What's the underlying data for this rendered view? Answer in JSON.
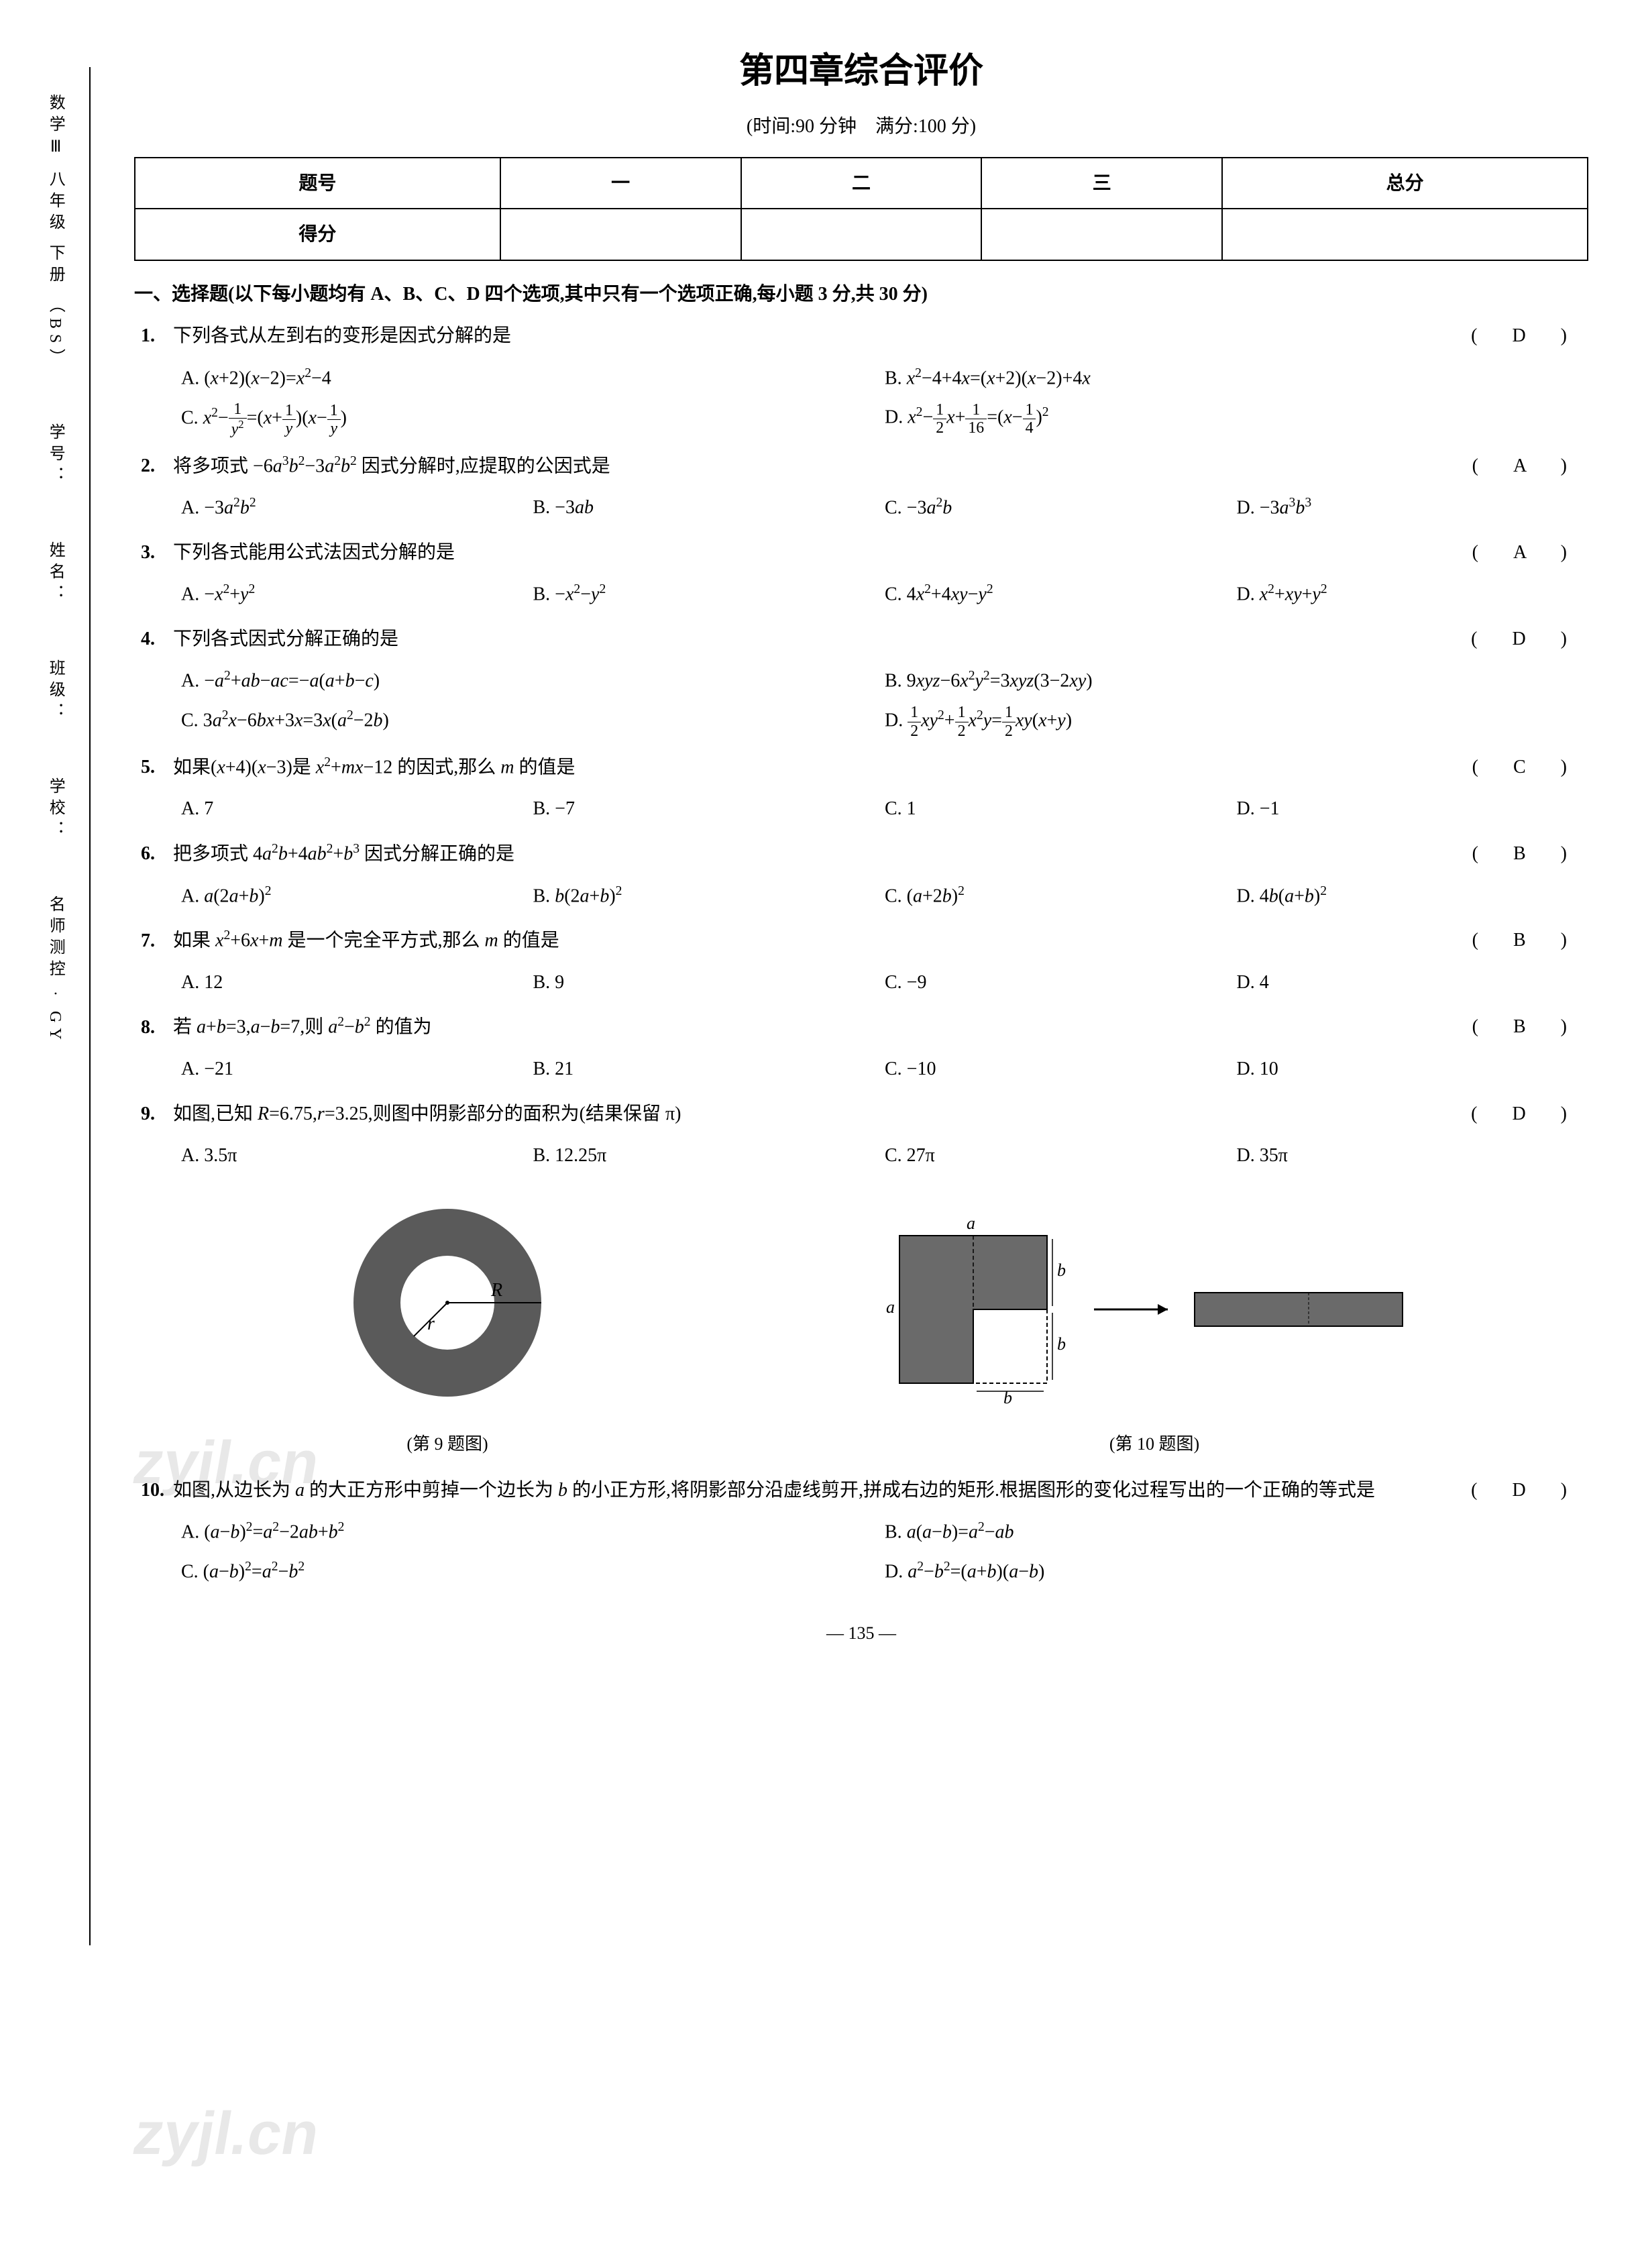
{
  "side_labels": [
    "数学Ⅲ 八年级 下册 （BS）",
    "学号：",
    "姓名：",
    "班级：",
    "学校：",
    "名师测控 · GY"
  ],
  "title": "第四章综合评价",
  "subtitle": "(时间:90 分钟　满分:100 分)",
  "score_table": {
    "headers": [
      "题号",
      "一",
      "二",
      "三",
      "总分"
    ],
    "row_label": "得分"
  },
  "section1_header": "一、选择题(以下每小题均有 A、B、C、D 四个选项,其中只有一个选项正确,每小题 3 分,共 30 分)",
  "questions": [
    {
      "num": "1.",
      "stem": "下列各式从左到右的变形是因式分解的是",
      "answer": "D",
      "layout": "opt-2",
      "options": [
        "A. (<i>x</i>+2)(<i>x</i>−2)=<i>x</i><sup>2</sup>−4",
        "B. <i>x</i><sup>2</sup>−4+4<i>x</i>=(<i>x</i>+2)(<i>x</i>−2)+4<i>x</i>",
        "C. <i>x</i><sup>2</sup>−<span class='frac'><span class='num'>1</span><span class='den'><i>y</i><sup>2</sup></span></span>=(<i>x</i>+<span class='frac'><span class='num'>1</span><span class='den'><i>y</i></span></span>)(<i>x</i>−<span class='frac'><span class='num'>1</span><span class='den'><i>y</i></span></span>)",
        "D. <i>x</i><sup>2</sup>−<span class='frac'><span class='num'>1</span><span class='den'>2</span></span><i>x</i>+<span class='frac'><span class='num'>1</span><span class='den'>16</span></span>=(<i>x</i>−<span class='frac'><span class='num'>1</span><span class='den'>4</span></span>)<sup>2</sup>"
      ]
    },
    {
      "num": "2.",
      "stem": "将多项式 −6<i>a</i><sup>3</sup><i>b</i><sup>2</sup>−3<i>a</i><sup>2</sup><i>b</i><sup>2</sup> 因式分解时,应提取的公因式是",
      "answer": "A",
      "layout": "opt-4",
      "options": [
        "A. −3<i>a</i><sup>2</sup><i>b</i><sup>2</sup>",
        "B. −3<i>ab</i>",
        "C. −3<i>a</i><sup>2</sup><i>b</i>",
        "D. −3<i>a</i><sup>3</sup><i>b</i><sup>3</sup>"
      ]
    },
    {
      "num": "3.",
      "stem": "下列各式能用公式法因式分解的是",
      "answer": "A",
      "layout": "opt-4",
      "options": [
        "A. −<i>x</i><sup>2</sup>+<i>y</i><sup>2</sup>",
        "B. −<i>x</i><sup>2</sup>−<i>y</i><sup>2</sup>",
        "C. 4<i>x</i><sup>2</sup>+4<i>xy</i>−<i>y</i><sup>2</sup>",
        "D. <i>x</i><sup>2</sup>+<i>xy</i>+<i>y</i><sup>2</sup>"
      ]
    },
    {
      "num": "4.",
      "stem": "下列各式因式分解正确的是",
      "answer": "D",
      "layout": "opt-2",
      "options": [
        "A. −<i>a</i><sup>2</sup>+<i>ab</i>−<i>ac</i>=−<i>a</i>(<i>a</i>+<i>b</i>−<i>c</i>)",
        "B. 9<i>xyz</i>−6<i>x</i><sup>2</sup><i>y</i><sup>2</sup>=3<i>xyz</i>(3−2<i>xy</i>)",
        "C. 3<i>a</i><sup>2</sup><i>x</i>−6<i>bx</i>+3<i>x</i>=3<i>x</i>(<i>a</i><sup>2</sup>−2<i>b</i>)",
        "D. <span class='frac'><span class='num'>1</span><span class='den'>2</span></span><i>xy</i><sup>2</sup>+<span class='frac'><span class='num'>1</span><span class='den'>2</span></span><i>x</i><sup>2</sup><i>y</i>=<span class='frac'><span class='num'>1</span><span class='den'>2</span></span><i>xy</i>(<i>x</i>+<i>y</i>)"
      ]
    },
    {
      "num": "5.",
      "stem": "如果(<i>x</i>+4)(<i>x</i>−3)是 <i>x</i><sup>2</sup>+<i>mx</i>−12 的因式,那么 <i>m</i> 的值是",
      "answer": "C",
      "layout": "opt-4",
      "options": [
        "A. 7",
        "B. −7",
        "C. 1",
        "D. −1"
      ]
    },
    {
      "num": "6.",
      "stem": "把多项式 4<i>a</i><sup>2</sup><i>b</i>+4<i>ab</i><sup>2</sup>+<i>b</i><sup>3</sup> 因式分解正确的是",
      "answer": "B",
      "layout": "opt-4",
      "options": [
        "A. <i>a</i>(2<i>a</i>+<i>b</i>)<sup>2</sup>",
        "B. <i>b</i>(2<i>a</i>+<i>b</i>)<sup>2</sup>",
        "C. (<i>a</i>+2<i>b</i>)<sup>2</sup>",
        "D. 4<i>b</i>(<i>a</i>+<i>b</i>)<sup>2</sup>"
      ]
    },
    {
      "num": "7.",
      "stem": "如果 <i>x</i><sup>2</sup>+6<i>x</i>+<i>m</i> 是一个完全平方式,那么 <i>m</i> 的值是",
      "answer": "B",
      "layout": "opt-4",
      "options": [
        "A. 12",
        "B. 9",
        "C. −9",
        "D. 4"
      ]
    },
    {
      "num": "8.",
      "stem": "若 <i>a</i>+<i>b</i>=3,<i>a</i>−<i>b</i>=7,则 <i>a</i><sup>2</sup>−<i>b</i><sup>2</sup> 的值为",
      "answer": "B",
      "layout": "opt-4",
      "options": [
        "A. −21",
        "B. 21",
        "C. −10",
        "D. 10"
      ]
    },
    {
      "num": "9.",
      "stem": "如图,已知 <i>R</i>=6.75,<i>r</i>=3.25,则图中阴影部分的面积为(结果保留 π)",
      "answer": "D",
      "layout": "opt-4",
      "options": [
        "A. 3.5π",
        "B. 12.25π",
        "C. 27π",
        "D. 35π"
      ]
    },
    {
      "num": "10.",
      "stem": "如图,从边长为 <i>a</i> 的大正方形中剪掉一个边长为 <i>b</i> 的小正方形,将阴影部分沿虚线剪开,拼成右边的矩形.根据图形的变化过程写出的一个正确的等式是",
      "answer": "D",
      "layout": "opt-2",
      "options": [
        "A. (<i>a</i>−<i>b</i>)<sup>2</sup>=<i>a</i><sup>2</sup>−2<i>ab</i>+<i>b</i><sup>2</sup>",
        "B. <i>a</i>(<i>a</i>−<i>b</i>)=<i>a</i><sup>2</sup>−<i>ab</i>",
        "C. (<i>a</i>−<i>b</i>)<sup>2</sup>=<i>a</i><sup>2</sup>−<i>b</i><sup>2</sup>",
        "D. <i>a</i><sup>2</sup>−<i>b</i><sup>2</sup>=(<i>a</i>+<i>b</i>)(<i>a</i>−<i>b</i>)"
      ]
    }
  ],
  "figure_captions": {
    "fig9": "(第 9 题图)",
    "fig10": "(第 10 题图)"
  },
  "fig9": {
    "R_label": "R",
    "r_label": "r",
    "outer_color": "#5a5a5a",
    "inner_color": "#ffffff"
  },
  "fig10": {
    "a_label": "a",
    "b_label": "b",
    "fill_color": "#6a6a6a"
  },
  "page_number": "— 135 —",
  "watermarks": [
    "zyjl.cn",
    "zyjl.cn"
  ],
  "colors": {
    "text": "#000000",
    "bg": "#ffffff",
    "border": "#000000"
  }
}
